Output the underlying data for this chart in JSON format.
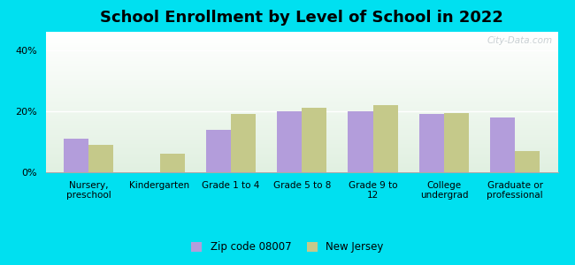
{
  "title": "School Enrollment by Level of School in 2022",
  "categories": [
    "Nursery,\npreschool",
    "Kindergarten",
    "Grade 1 to 4",
    "Grade 5 to 8",
    "Grade 9 to\n12",
    "College\nundergrad",
    "Graduate or\nprofessional"
  ],
  "zip_values": [
    11,
    0,
    14,
    20,
    20,
    19,
    18
  ],
  "nj_values": [
    9,
    6,
    19,
    21,
    22,
    19.5,
    7
  ],
  "zip_color": "#b39ddb",
  "nj_color": "#c5c98a",
  "background_outer": "#00e0f0",
  "title_fontsize": 13,
  "legend_label_zip": "Zip code 08007",
  "legend_label_nj": "New Jersey",
  "ylim": [
    0,
    46
  ],
  "yticks": [
    0,
    20,
    40
  ],
  "ytick_labels": [
    "0%",
    "20%",
    "40%"
  ],
  "watermark": "City-Data.com",
  "bar_width": 0.35
}
